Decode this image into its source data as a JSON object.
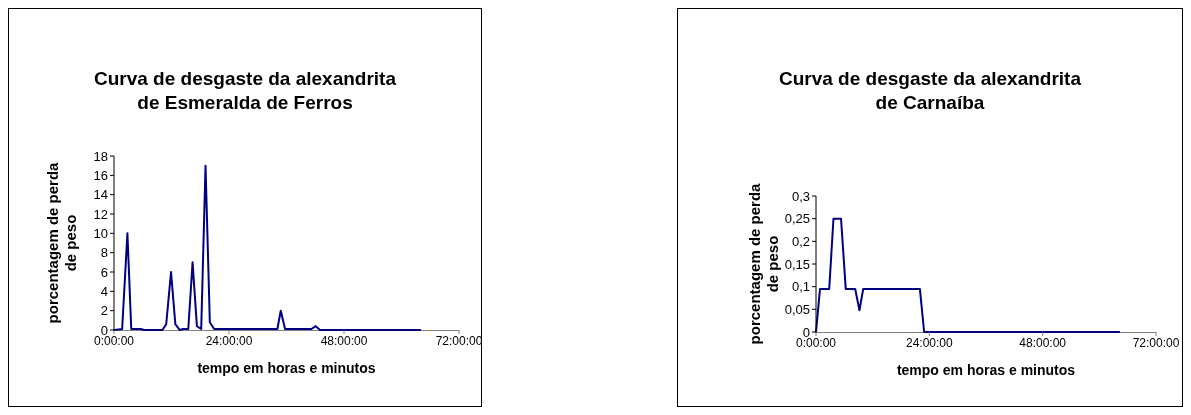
{
  "chart_data": [
    {
      "type": "line",
      "title": "Curva de desgaste da alexandrita\nde Esmeralda de Ferros",
      "xlabel": "tempo em horas e minutos",
      "ylabel": "porcentagem de perda\nde peso",
      "x": [
        0,
        0.2,
        1.7,
        2.8,
        3.6,
        5.6,
        6.3,
        10.1,
        10.9,
        11.9,
        12.8,
        13.7,
        14.4,
        15.5,
        16.4,
        17.3,
        18.2,
        19.1,
        20,
        20.9,
        34.1,
        34.8,
        35.7,
        41.2,
        42.1,
        43,
        63.9
      ],
      "series": [
        {
          "color": "#000080",
          "values": [
            0,
            0,
            0.1,
            10,
            0.1,
            0.1,
            0,
            0,
            0.6,
            6,
            0.6,
            0,
            0.1,
            0.1,
            7,
            0.4,
            0.1,
            17,
            0.8,
            0.1,
            0.1,
            2,
            0.1,
            0.1,
            0.4,
            0,
            0
          ]
        }
      ],
      "xlim": [
        0,
        72
      ],
      "xticks": [
        {
          "value": 0,
          "label": "0:00:00"
        },
        {
          "value": 24,
          "label": "24:00:00"
        },
        {
          "value": 48,
          "label": "48:00:00"
        },
        {
          "value": 72,
          "label": "72:00:00"
        }
      ],
      "ylim": [
        0,
        18
      ],
      "yticks": [
        0,
        2,
        4,
        6,
        8,
        10,
        12,
        14,
        16,
        18
      ],
      "grid": false,
      "legend": false,
      "marker": "none",
      "line_style": "solid"
    },
    {
      "type": "line",
      "title": "Curva de desgaste da alexandrita\nde Carnaíba",
      "xlabel": "tempo em horas e minutos",
      "ylabel": "porcentagem de perda\nde peso",
      "x": [
        0,
        0.85,
        2.8,
        3.7,
        5.3,
        6.3,
        8.3,
        9.2,
        10,
        22,
        22.9,
        64.2
      ],
      "series": [
        {
          "color": "#000080",
          "values": [
            0,
            0.095,
            0.095,
            0.25,
            0.25,
            0.095,
            0.095,
            0.048,
            0.095,
            0.095,
            0,
            0
          ]
        }
      ],
      "xlim": [
        0,
        72
      ],
      "xticks": [
        {
          "value": 0,
          "label": "0:00:00"
        },
        {
          "value": 24,
          "label": "24:00:00"
        },
        {
          "value": 48,
          "label": "48:00:00"
        },
        {
          "value": 72,
          "label": "72:00:00"
        }
      ],
      "ylim": [
        0,
        0.3
      ],
      "yticks": [
        0,
        {
          "value": 0.05,
          "label": "0,05"
        },
        {
          "value": 0.1,
          "label": "0,1"
        },
        {
          "value": 0.15,
          "label": "0,15"
        },
        {
          "value": 0.2,
          "label": "0,2"
        },
        {
          "value": 0.25,
          "label": "0,25"
        },
        {
          "value": 0.3,
          "label": "0,3"
        }
      ],
      "grid": false,
      "legend": false,
      "marker": "none",
      "line_style": "solid"
    }
  ]
}
